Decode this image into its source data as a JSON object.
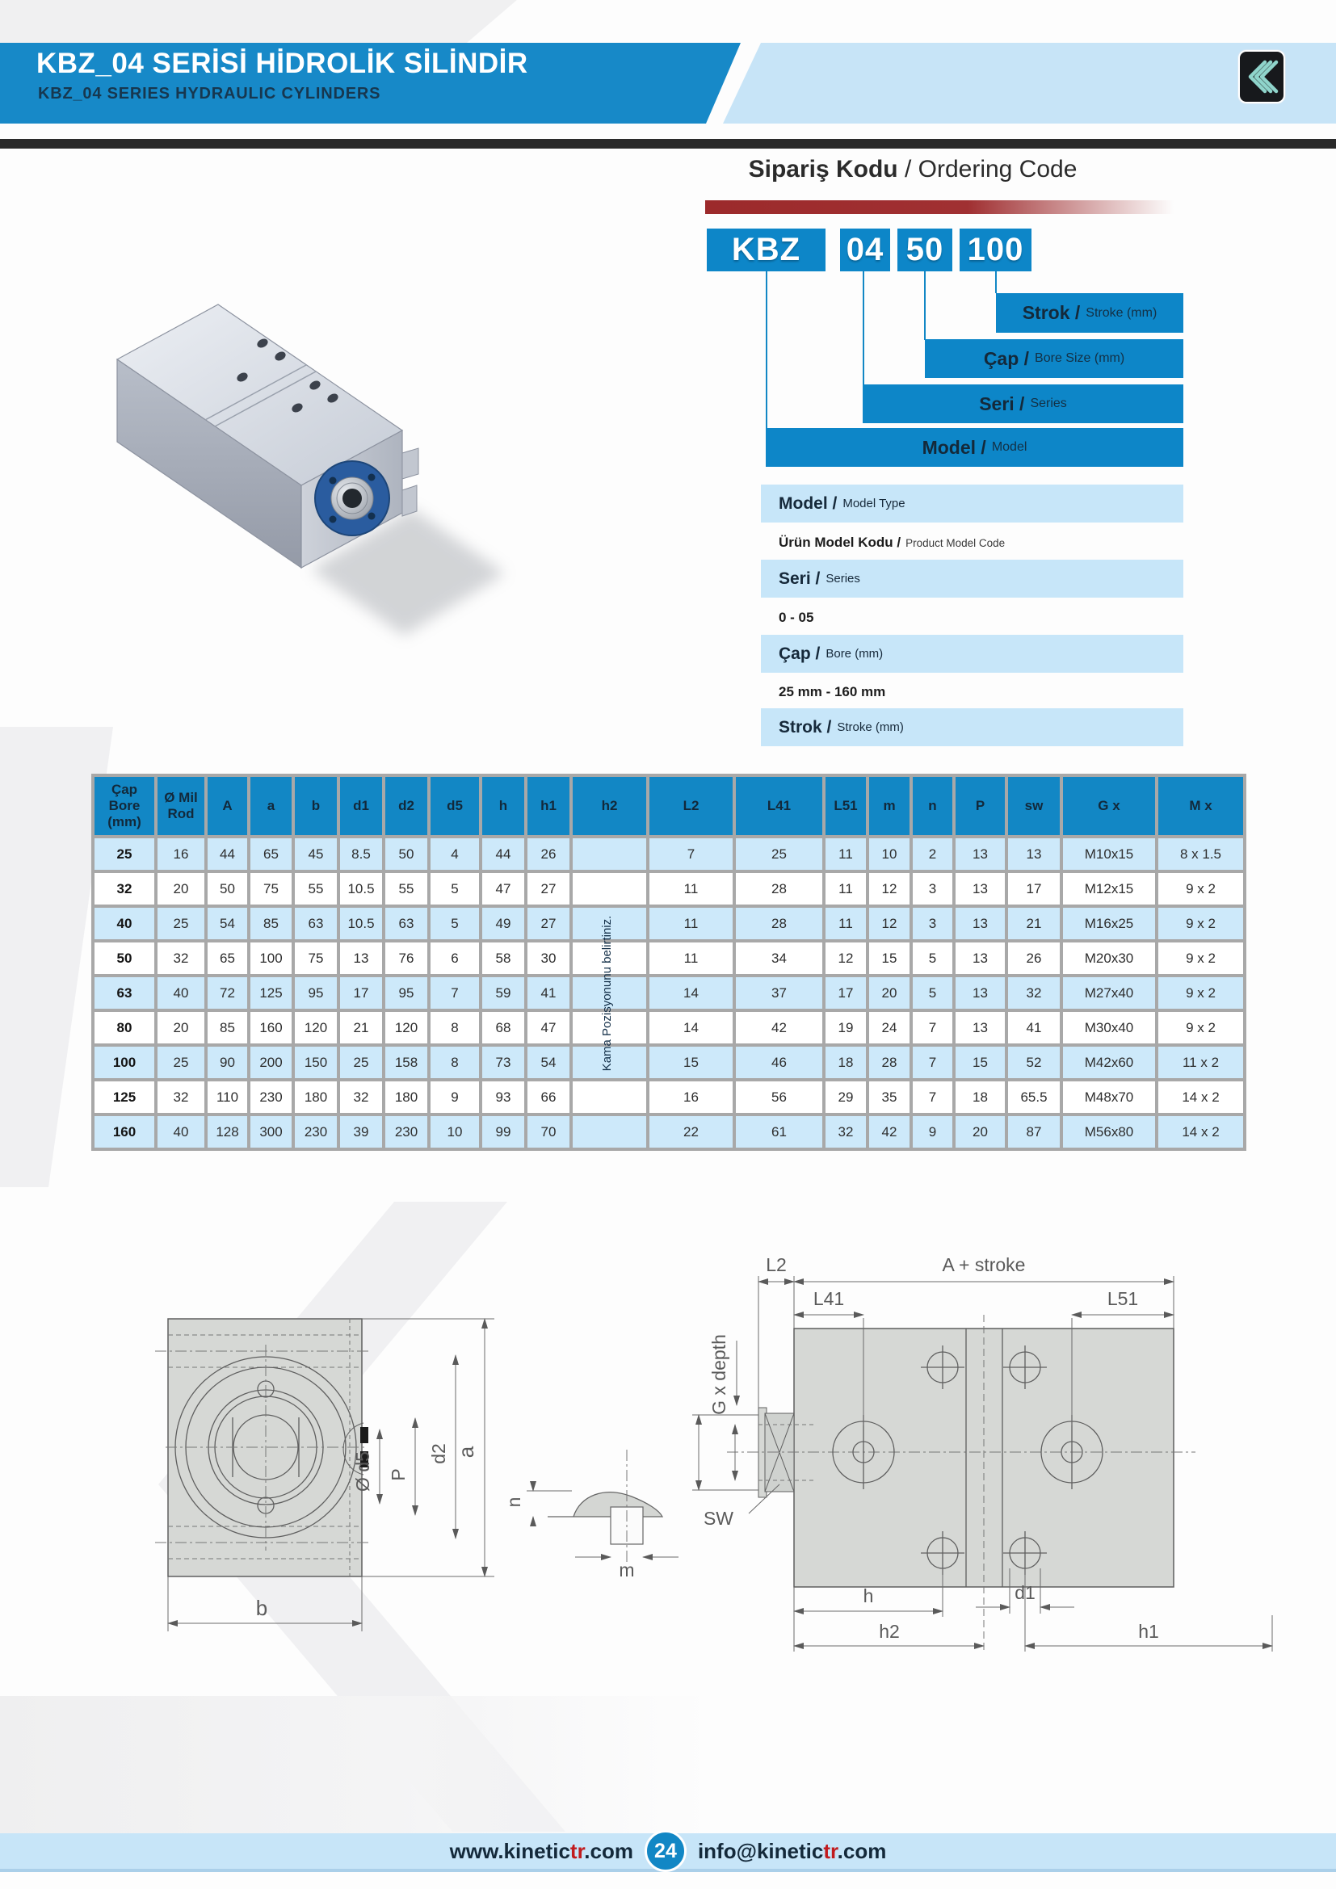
{
  "header": {
    "title": "KBZ_04 SERİSİ HİDROLİK SİLİNDİR",
    "subtitle": "KBZ_04 SERIES HYDRAULIC CYLINDERS"
  },
  "ordering": {
    "heading_bold": "Sipariş Kodu",
    "heading_rest": " / Ordering Code",
    "code_boxes": [
      "KBZ",
      "04",
      "50",
      "100"
    ],
    "bars": [
      {
        "label": "Strok /",
        "sub": "Stroke (mm)"
      },
      {
        "label": "Çap /",
        "sub": "Bore Size (mm)"
      },
      {
        "label": "Seri /",
        "sub": "Series"
      },
      {
        "label": "Model /",
        "sub": "Model"
      }
    ],
    "info_rows": [
      {
        "label": "Model /",
        "sub": "Model Type"
      },
      {
        "label": "Ürün Model Kodu /",
        "sub": "Product Model Code"
      },
      {
        "label": "Seri /",
        "sub": "Series"
      },
      {
        "label": "0 - 05",
        "sub": ""
      },
      {
        "label": "Çap /",
        "sub": "Bore (mm)"
      },
      {
        "label": "25 mm - 160 mm",
        "sub": ""
      },
      {
        "label": "Strok /",
        "sub": "Stroke (mm)"
      }
    ]
  },
  "table": {
    "columns": [
      "Çap\nBore\n(mm)",
      "Ø Mil\nRod",
      "A",
      "a",
      "b",
      "d1",
      "d2",
      "d5",
      "h",
      "h1",
      "h2",
      "L2",
      "L41",
      "L51",
      "m",
      "n",
      "P",
      "sw",
      "G x",
      "M x"
    ],
    "h2_note": "Kama Pozisyonunu belirtiniz.",
    "rows": [
      [
        "25",
        "16",
        "44",
        "65",
        "45",
        "8.5",
        "50",
        "4",
        "44",
        "26",
        "",
        "7",
        "25",
        "11",
        "10",
        "2",
        "13",
        "13",
        "M10x15",
        "8 x 1.5"
      ],
      [
        "32",
        "20",
        "50",
        "75",
        "55",
        "10.5",
        "55",
        "5",
        "47",
        "27",
        "",
        "11",
        "28",
        "11",
        "12",
        "3",
        "13",
        "17",
        "M12x15",
        "9 x 2"
      ],
      [
        "40",
        "25",
        "54",
        "85",
        "63",
        "10.5",
        "63",
        "5",
        "49",
        "27",
        "",
        "11",
        "28",
        "11",
        "12",
        "3",
        "13",
        "21",
        "M16x25",
        "9 x 2"
      ],
      [
        "50",
        "32",
        "65",
        "100",
        "75",
        "13",
        "76",
        "6",
        "58",
        "30",
        "",
        "11",
        "34",
        "12",
        "15",
        "5",
        "13",
        "26",
        "M20x30",
        "9 x 2"
      ],
      [
        "63",
        "40",
        "72",
        "125",
        "95",
        "17",
        "95",
        "7",
        "59",
        "41",
        "",
        "14",
        "37",
        "17",
        "20",
        "5",
        "13",
        "32",
        "M27x40",
        "9 x 2"
      ],
      [
        "80",
        "20",
        "85",
        "160",
        "120",
        "21",
        "120",
        "8",
        "68",
        "47",
        "",
        "14",
        "42",
        "19",
        "24",
        "7",
        "13",
        "41",
        "M30x40",
        "9 x 2"
      ],
      [
        "100",
        "25",
        "90",
        "200",
        "150",
        "25",
        "158",
        "8",
        "73",
        "54",
        "",
        "15",
        "46",
        "18",
        "28",
        "7",
        "15",
        "52",
        "M42x60",
        "11 x 2"
      ],
      [
        "125",
        "32",
        "110",
        "230",
        "180",
        "32",
        "180",
        "9",
        "93",
        "66",
        "",
        "16",
        "56",
        "29",
        "35",
        "7",
        "18",
        "65.5",
        "M48x70",
        "14 x 2"
      ],
      [
        "160",
        "40",
        "128",
        "300",
        "230",
        "39",
        "230",
        "10",
        "99",
        "70",
        "",
        "22",
        "61",
        "32",
        "42",
        "9",
        "20",
        "87",
        "M56x80",
        "14 x 2"
      ]
    ]
  },
  "drawings": {
    "front": {
      "b": "b",
      "a": "a",
      "d2": "d2",
      "d5": "Ø d5",
      "p": "P"
    },
    "detail": {
      "n": "n",
      "m": "m"
    },
    "side": {
      "l2": "L2",
      "a_stroke": "A + stroke",
      "l41": "L41",
      "l51": "L51",
      "g_depth": "G x depth",
      "sw": "SW",
      "h": "h",
      "d1": "d1",
      "h2": "h2",
      "h1": "h1"
    }
  },
  "footer": {
    "site_pre": "www.kinetic",
    "site_tr": "tr",
    "site_post": ".com",
    "page_number": "24",
    "mail_pre": "info@kinetic",
    "mail_tr": "tr",
    "mail_post": ".com"
  },
  "colors": {
    "band_blue": "#1789c8",
    "light_blue": "#c7e5f8",
    "accent_blue": "#1287c5",
    "row_blue": "#cde9fa",
    "dark_bar": "#2a2a2a",
    "red_bar": "#9d2b2b",
    "logo_teal": "#8fd4cb",
    "tr_red": "#c11b1e",
    "flange_blue": "#2a5c9f"
  }
}
